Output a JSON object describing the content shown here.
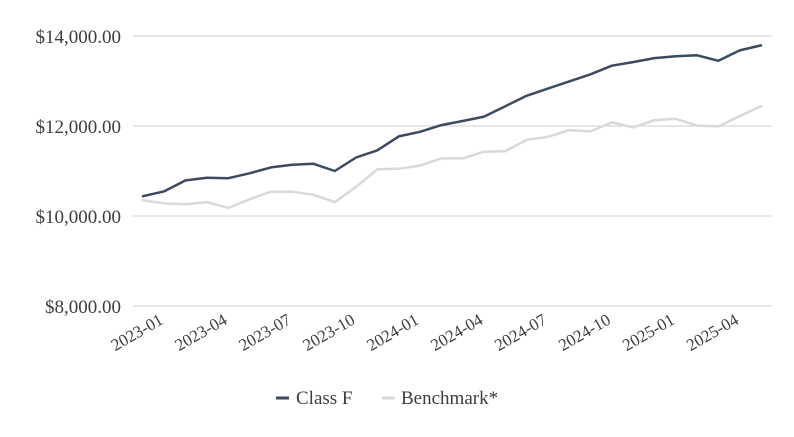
{
  "chart_data": {
    "type": "line",
    "title": "",
    "xlabel": "",
    "ylabel": "",
    "ylim": [
      8000,
      14000
    ],
    "yticks": [
      8000,
      10000,
      12000,
      14000
    ],
    "ytick_labels": [
      "$8,000.00",
      "$10,000.00",
      "$12,000.00",
      "$14,000.00"
    ],
    "xtick_labels": [
      "2023-01",
      "2023-04",
      "2023-07",
      "2023-10",
      "2024-01",
      "2024-04",
      "2024-07",
      "2024-10",
      "2025-01",
      "2025-04"
    ],
    "x": [
      "2022-12",
      "2023-01",
      "2023-02",
      "2023-03",
      "2023-04",
      "2023-05",
      "2023-06",
      "2023-07",
      "2023-08",
      "2023-09",
      "2023-10",
      "2023-11",
      "2023-12",
      "2024-01",
      "2024-02",
      "2024-03",
      "2024-04",
      "2024-05",
      "2024-06",
      "2024-07",
      "2024-08",
      "2024-09",
      "2024-10",
      "2024-11",
      "2024-12",
      "2025-01",
      "2025-02",
      "2025-03",
      "2025-04",
      "2025-05"
    ],
    "grid": true,
    "legend_position": "bottom",
    "series": [
      {
        "name": "Class F",
        "color": "#3b4a5e",
        "values": [
          10440,
          10550,
          10790,
          10850,
          10840,
          10950,
          11080,
          11140,
          11160,
          11000,
          11300,
          11460,
          11770,
          11870,
          12020,
          12110,
          12210,
          12440,
          12670,
          12830,
          12990,
          13150,
          13340,
          13420,
          13510,
          13550,
          13570,
          13450,
          13680,
          13790
        ]
      },
      {
        "name": "Benchmark*",
        "color": "#d9d9d9",
        "values": [
          10350,
          10280,
          10260,
          10310,
          10180,
          10370,
          10540,
          10540,
          10470,
          10310,
          10650,
          11040,
          11050,
          11120,
          11280,
          11280,
          11430,
          11440,
          11690,
          11760,
          11910,
          11880,
          12080,
          11970,
          12130,
          12160,
          12010,
          11990,
          12220,
          12440
        ]
      }
    ]
  }
}
